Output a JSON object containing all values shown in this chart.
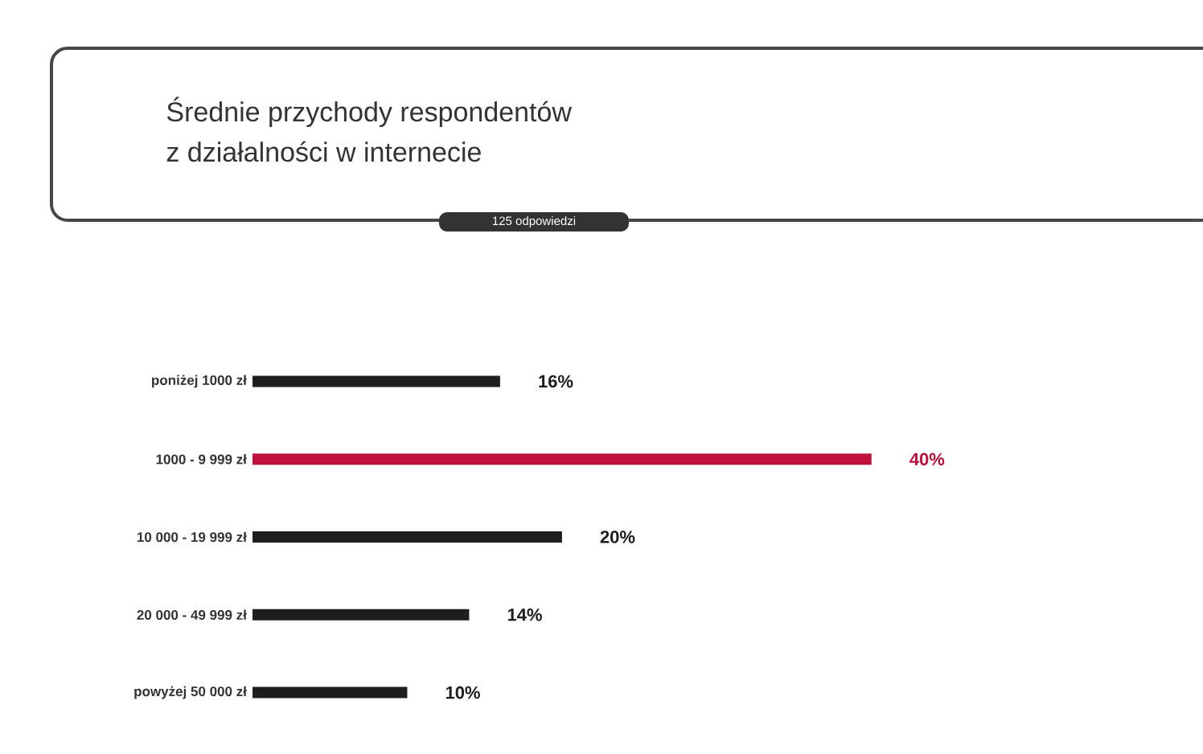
{
  "chart_data": {
    "type": "bar",
    "orientation": "horizontal",
    "title": "Średnie przychody respondentów\nz działalności w internecie",
    "subtitle": "125 odpowiedzi",
    "categories": [
      "poniżej 1000 zł",
      "1000 - 9 999 zł",
      "10 000 - 19 999 zł",
      "20 000 - 49 999 zł",
      "powyżej 50 000 zł"
    ],
    "values": [
      16,
      40,
      20,
      14,
      10
    ],
    "colors": [
      "#1e1e1e",
      "#c0103c",
      "#1e1e1e",
      "#1e1e1e",
      "#1e1e1e"
    ],
    "value_labels": [
      "16%",
      "40%",
      "20%",
      "14%",
      "10%"
    ]
  }
}
